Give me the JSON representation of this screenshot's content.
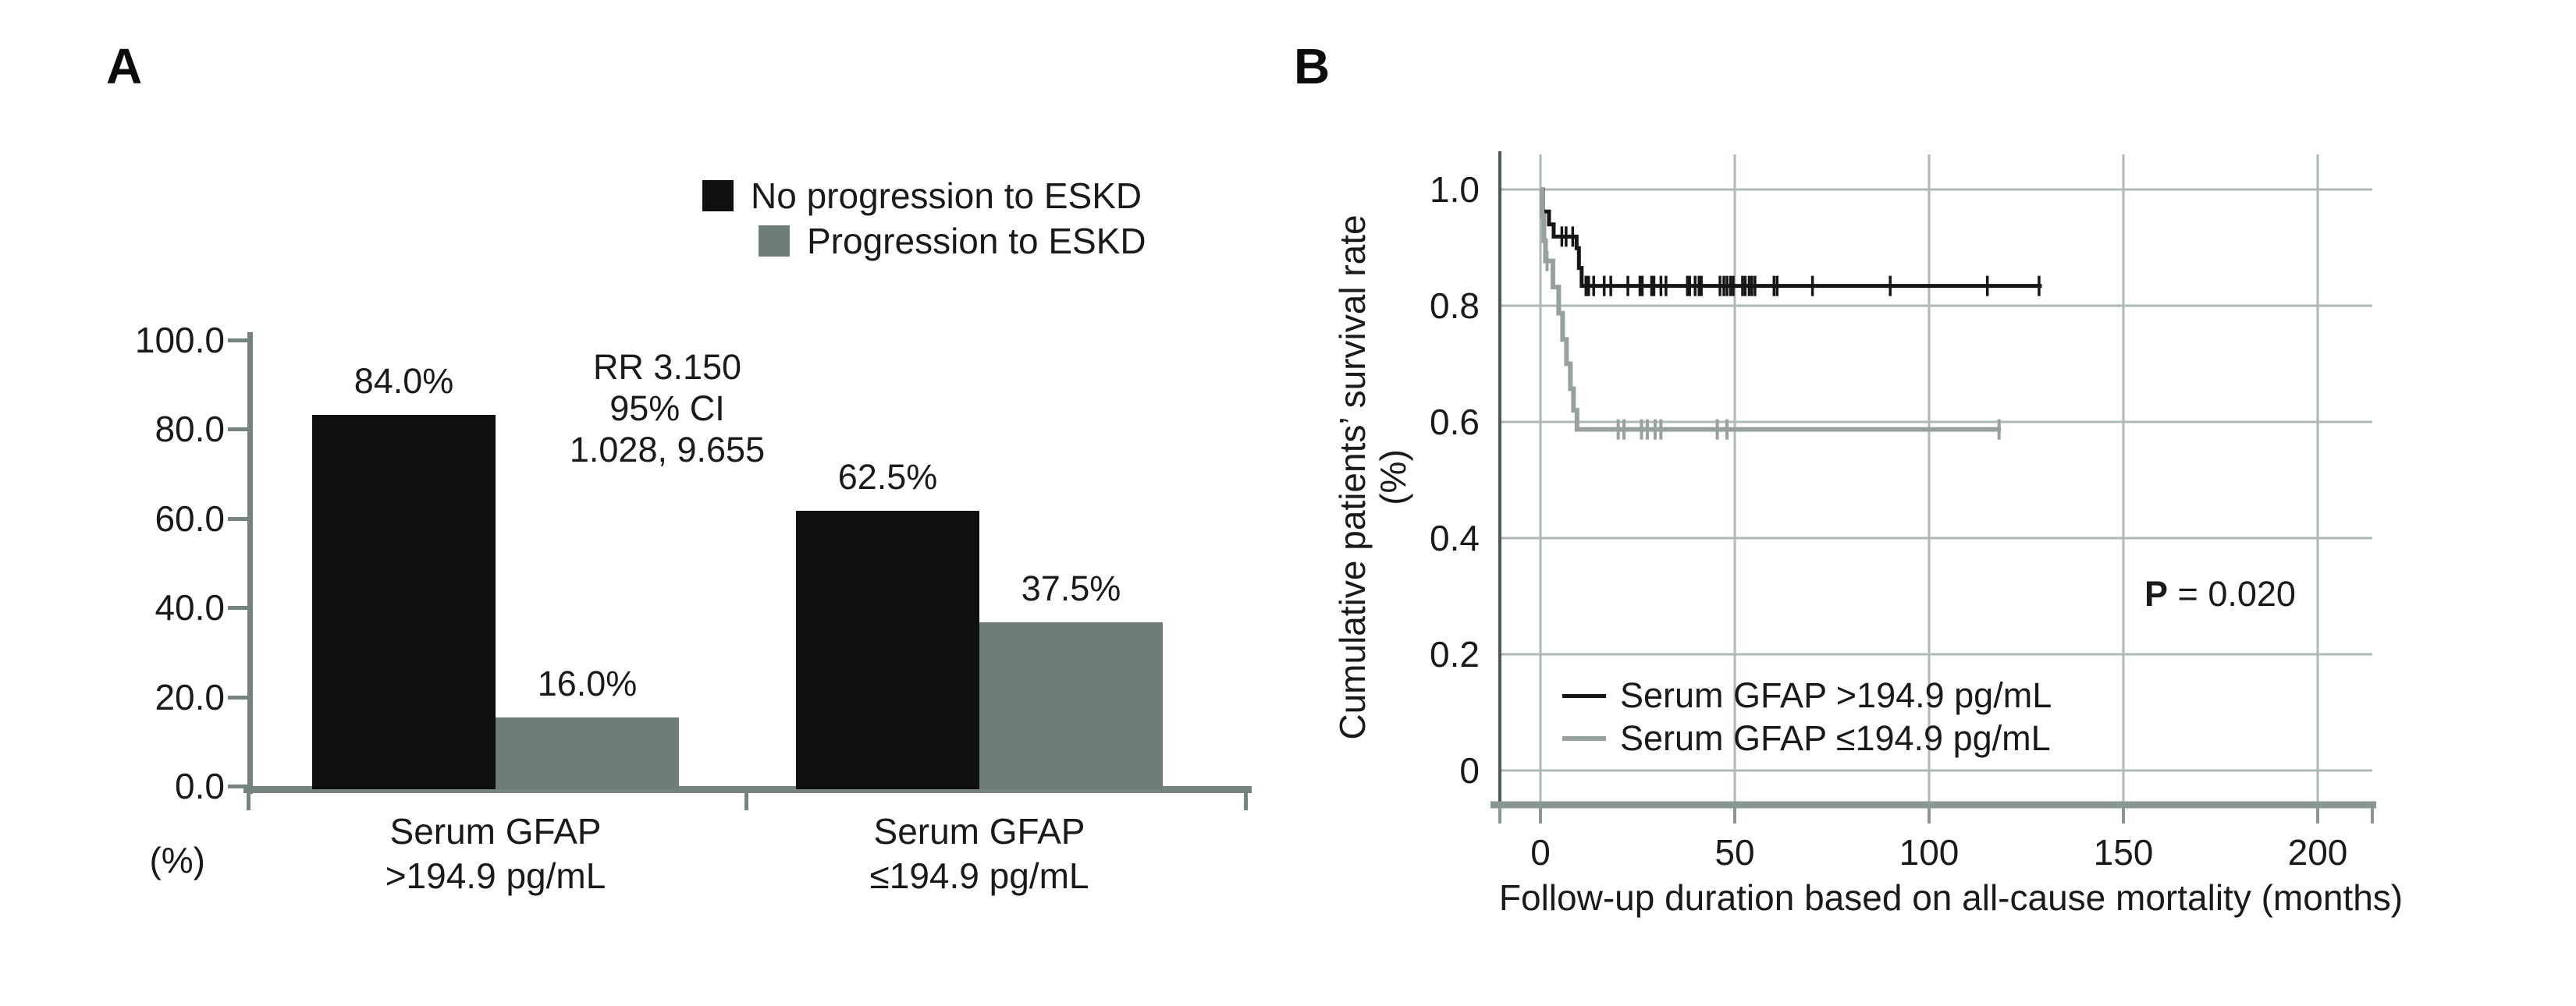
{
  "figure": {
    "description": "Two-panel clinical figure: bar chart of ESKD progression and Kaplan-Meier survival curves by serum GFAP level",
    "background": "#ffffff"
  },
  "panelA": {
    "label": "A",
    "legend": [
      {
        "label": "No progression to ESKD",
        "color": "#0f0f0f"
      },
      {
        "label": "Progression to ESKD",
        "color": "#6f7d7a"
      }
    ],
    "y_unit_label": "(%)"
  },
  "panelB": {
    "label": "B",
    "p_prefix": "P",
    "p_rest": " = 0.020",
    "x_title": "Follow-up duration based on all-cause mortality (months)",
    "y_title_line1": "Cumulative patients’ survival rate",
    "y_title_line2": "(%)",
    "legend": [
      {
        "label": "Serum GFAP >194.9 pg/mL",
        "color": "#161616"
      },
      {
        "label": "Serum GFAP ≤194.9 pg/mL",
        "color": "#97a2a0"
      }
    ]
  },
  "chart_data": [
    {
      "id": "progression-bar-chart",
      "type": "bar",
      "title": "Progression to ESKD by serum GFAP group",
      "categories": [
        [
          "Serum GFAP",
          ">194.9 pg/mL"
        ],
        [
          "Serum GFAP",
          "≤194.9 pg/mL"
        ]
      ],
      "series": [
        {
          "name": "No progression to ESKD",
          "color": "#0f0f0f",
          "values": [
            84.0,
            62.5
          ],
          "value_labels": [
            "84.0%",
            "62.5%"
          ]
        },
        {
          "name": "Progression to ESKD",
          "color": "#6f7d7a",
          "values": [
            16.0,
            37.5
          ],
          "value_labels": [
            "16.0%",
            "37.5%"
          ]
        }
      ],
      "ylabel": "(%)",
      "ylim": [
        0,
        100
      ],
      "yticks": [
        100,
        80,
        60,
        40,
        20,
        0
      ],
      "ytick_labels": [
        "100.0",
        "80.0",
        "60.0",
        "40.0",
        "20.0",
        "0.0"
      ],
      "annotation": [
        "RR 3.150",
        "95% CI",
        "1.028, 9.655"
      ],
      "legend_position": "top right",
      "grid": false
    },
    {
      "id": "km-survival-plot",
      "type": "line",
      "subtype": "kaplan-meier-step",
      "xlabel": "Follow-up duration based on all-cause mortality (months)",
      "ylabel": "Cumulative patients’ survival rate (%)",
      "xlim": [
        -13,
        215
      ],
      "ylim": [
        0,
        1.05
      ],
      "xticks": [
        0,
        50,
        100,
        150,
        200
      ],
      "xtick_labels": [
        "0",
        "50",
        "100",
        "150",
        "200"
      ],
      "yticks": [
        1.0,
        0.8,
        0.6,
        0.4,
        0.2,
        0
      ],
      "ytick_labels": [
        "1.0",
        "0.8",
        "0.6",
        "0.4",
        "0.2",
        "0"
      ],
      "p_value": "P = 0.020",
      "grid": true,
      "legend_position": "lower left inside",
      "series": [
        {
          "name": "Serum GFAP >194.9 pg/mL",
          "color": "#161616",
          "steps": [
            [
              0,
              1.0
            ],
            [
              0.6,
              0.962
            ],
            [
              2.2,
              0.94
            ],
            [
              3.4,
              0.919
            ],
            [
              9.3,
              0.899
            ],
            [
              9.9,
              0.865
            ],
            [
              10.6,
              0.834
            ],
            [
              129,
              0.834
            ]
          ],
          "censor_times": [
            5.5,
            6.6,
            8.3,
            11.7,
            12.4,
            13.7,
            16.4,
            18.1,
            22.5,
            25.6,
            26.2,
            28.6,
            29.2,
            31,
            32.3,
            37.8,
            38.4,
            39.8,
            40.8,
            41.4,
            46.2,
            47.2,
            48,
            48.9,
            49.6,
            52,
            52.7,
            53.7,
            54.4,
            55.2,
            60.1,
            60.9,
            70,
            90,
            115,
            128.3
          ]
        },
        {
          "name": "Serum GFAP ≤194.9 pg/mL",
          "color": "#97a2a0",
          "steps": [
            [
              0,
              1.0
            ],
            [
              0.4,
              0.955
            ],
            [
              0.9,
              0.912
            ],
            [
              1.3,
              0.877
            ],
            [
              3.2,
              0.832
            ],
            [
              4.7,
              0.787
            ],
            [
              5.7,
              0.742
            ],
            [
              6.7,
              0.7
            ],
            [
              7.7,
              0.657
            ],
            [
              8.5,
              0.62
            ],
            [
              9.4,
              0.587
            ],
            [
              118.5,
              0.587
            ]
          ],
          "censor_times": [
            1.7,
            20,
            21.5,
            26,
            27.5,
            29.5,
            31,
            45.5,
            48,
            118
          ]
        }
      ]
    }
  ]
}
